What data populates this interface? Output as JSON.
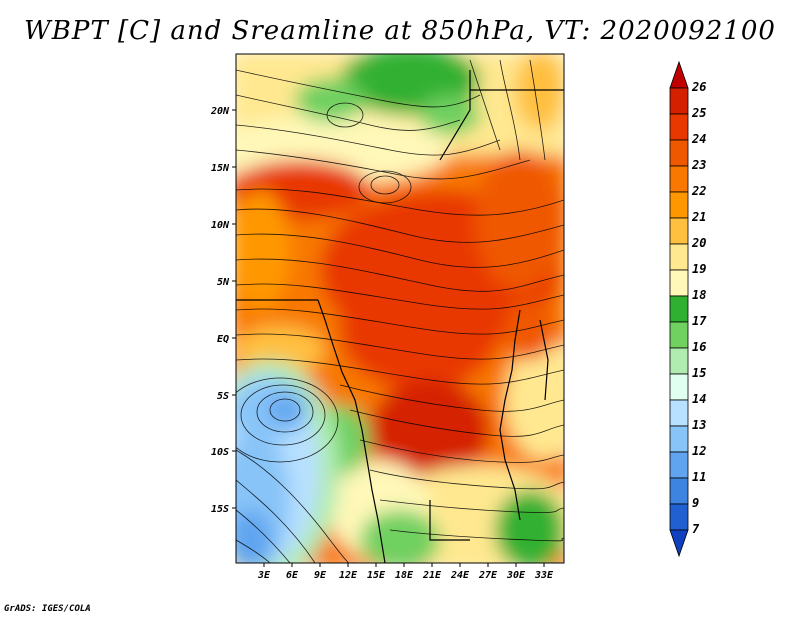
{
  "title": "WBPT [C] and Sreamline at 850hPa, VT: 2020092100",
  "credit": "GrADS: IGES/COLA",
  "map": {
    "lon_labels": [
      "3E",
      "6E",
      "9E",
      "12E",
      "15E",
      "18E",
      "21E",
      "24E",
      "27E",
      "30E",
      "33E"
    ],
    "lat_labels": [
      "20N",
      "15N",
      "10N",
      "5N",
      "EQ",
      "5S",
      "10S",
      "15S"
    ]
  },
  "colorbar": {
    "levels": [
      "26",
      "25",
      "24",
      "23",
      "22",
      "21",
      "20",
      "19",
      "18",
      "17",
      "16",
      "15",
      "14",
      "13",
      "12",
      "11",
      "9",
      "7"
    ],
    "colors": [
      "#c00000",
      "#d52000",
      "#e83800",
      "#f05800",
      "#f87800",
      "#ff9800",
      "#ffc040",
      "#ffe890",
      "#fff8b8",
      "#30b030",
      "#70d060",
      "#b0ecb0",
      "#e0fff0",
      "#b8e0ff",
      "#88c4f8",
      "#60a4f0",
      "#3c84e0",
      "#2060d0",
      "#1040c0"
    ]
  }
}
